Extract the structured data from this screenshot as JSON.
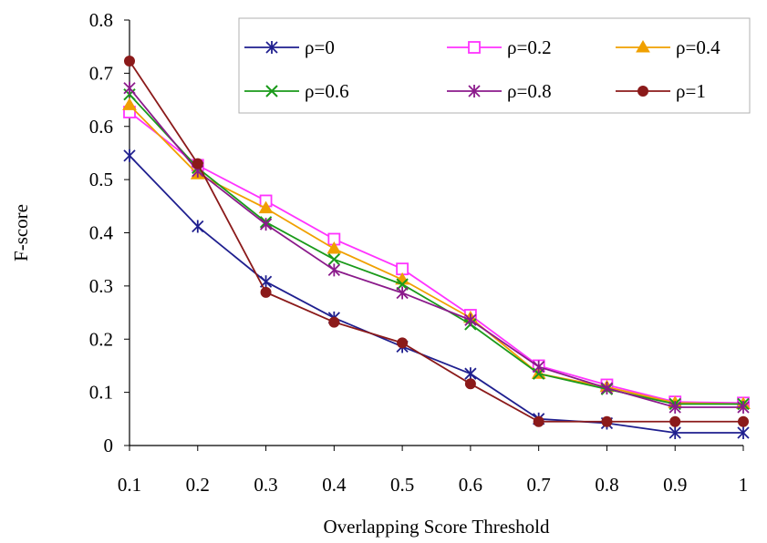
{
  "chart_data": {
    "type": "line",
    "title": "",
    "xlabel": "Overlapping Score Threshold",
    "ylabel": "F-score",
    "x": [
      0.1,
      0.2,
      0.3,
      0.4,
      0.5,
      0.6,
      0.7,
      0.8,
      0.9,
      1
    ],
    "x_tick_labels": [
      "0.1",
      "0.2",
      "0.3",
      "0.4",
      "0.5",
      "0.6",
      "0.7",
      "0.8",
      "0.9",
      "1"
    ],
    "ylim": [
      0,
      0.8
    ],
    "y_ticks": [
      0,
      0.1,
      0.2,
      0.3,
      0.4,
      0.5,
      0.6,
      0.7,
      0.8
    ],
    "y_tick_labels": [
      "0",
      "0.1",
      "0.2",
      "0.3",
      "0.4",
      "0.5",
      "0.6",
      "0.7",
      "0.8"
    ],
    "grid": false,
    "legend_position": "top-right",
    "series": [
      {
        "name": "ρ=0",
        "color": "#1f1f8f",
        "marker": "asterisk",
        "values": [
          0.545,
          0.412,
          0.308,
          0.24,
          0.186,
          0.135,
          0.05,
          0.042,
          0.024,
          0.024
        ]
      },
      {
        "name": "ρ=0.2",
        "color": "#ff33ff",
        "marker": "square-open",
        "values": [
          0.627,
          0.527,
          0.46,
          0.388,
          0.332,
          0.245,
          0.15,
          0.114,
          0.082,
          0.08
        ]
      },
      {
        "name": "ρ=0.4",
        "color": "#f0a000",
        "marker": "triangle",
        "values": [
          0.64,
          0.51,
          0.446,
          0.37,
          0.312,
          0.24,
          0.135,
          0.11,
          0.08,
          0.078
        ]
      },
      {
        "name": "ρ=0.6",
        "color": "#1a9a1a",
        "marker": "x",
        "values": [
          0.66,
          0.522,
          0.42,
          0.35,
          0.303,
          0.228,
          0.135,
          0.106,
          0.078,
          0.078
        ]
      },
      {
        "name": "ρ=0.8",
        "color": "#8b1a8b",
        "marker": "asterisk",
        "values": [
          0.672,
          0.516,
          0.416,
          0.33,
          0.287,
          0.236,
          0.148,
          0.108,
          0.072,
          0.072
        ]
      },
      {
        "name": "ρ=1",
        "color": "#8b1a1a",
        "marker": "circle",
        "values": [
          0.723,
          0.53,
          0.288,
          0.232,
          0.193,
          0.116,
          0.045,
          0.045,
          0.045,
          0.045
        ]
      }
    ]
  }
}
